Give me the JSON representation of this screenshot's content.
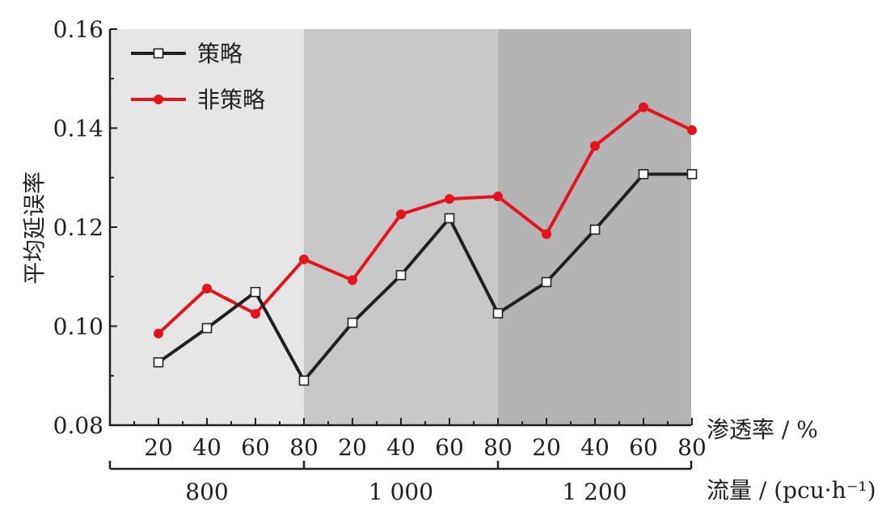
{
  "chart_data": {
    "type": "line",
    "xlabel": "渗透率 / %",
    "group_axis_label": "流量 / (pcu·h⁻¹)",
    "ylabel": "平均延误率",
    "ylim": [
      0.08,
      0.16
    ],
    "yticks": [
      "0.08",
      "0.10",
      "0.12",
      "0.14",
      "0.16"
    ],
    "categories": [
      "20",
      "40",
      "60",
      "80",
      "20",
      "40",
      "60",
      "80",
      "20",
      "40",
      "60",
      "80"
    ],
    "groups": [
      {
        "label": "800",
        "shade": "#e6e6e6"
      },
      {
        "label": "1 000",
        "shade": "#c8c8c8"
      },
      {
        "label": "1 200",
        "shade": "#b4b4b4"
      }
    ],
    "legend_position": "top-left",
    "series": [
      {
        "name": "策略",
        "color": "#231f20",
        "marker": "square",
        "values": [
          0.0927,
          0.0996,
          0.1069,
          0.089,
          0.1007,
          0.1103,
          0.1218,
          0.1026,
          0.1089,
          0.1195,
          0.1307,
          0.1307
        ]
      },
      {
        "name": "非策略",
        "color": "#e3141b",
        "marker": "circle",
        "values": [
          0.0985,
          0.1076,
          0.1025,
          0.1135,
          0.1093,
          0.1226,
          0.1257,
          0.1262,
          0.1186,
          0.1364,
          0.1442,
          0.1396
        ]
      }
    ]
  }
}
